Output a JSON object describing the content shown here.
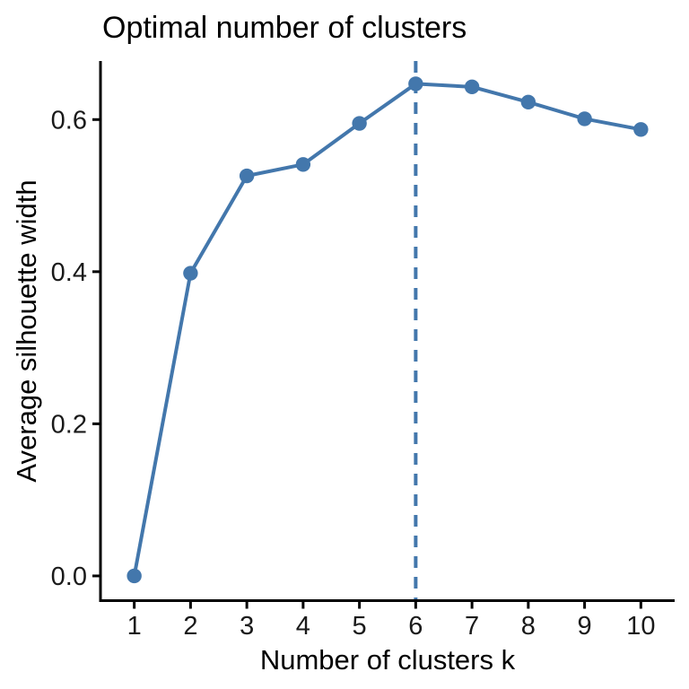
{
  "chart_data": {
    "type": "line",
    "title": "Optimal number of clusters",
    "xlabel": "Number of clusters k",
    "ylabel": "Average silhouette width",
    "x": [
      1,
      2,
      3,
      4,
      5,
      6,
      7,
      8,
      9,
      10
    ],
    "values": [
      0.0,
      0.398,
      0.526,
      0.541,
      0.595,
      0.647,
      0.643,
      0.623,
      0.601,
      0.587
    ],
    "series_name": "Average silhouette width",
    "x_tick_labels": [
      "1",
      "2",
      "3",
      "4",
      "5",
      "6",
      "7",
      "8",
      "9",
      "10"
    ],
    "y_ticks": [
      {
        "value": 0.0,
        "label": "0.0"
      },
      {
        "value": 0.2,
        "label": "0.2"
      },
      {
        "value": 0.4,
        "label": "0.4"
      },
      {
        "value": 0.6,
        "label": "0.6"
      }
    ],
    "xlim": [
      0.4,
      10.6
    ],
    "ylim": [
      -0.0325,
      0.677
    ],
    "grid": false,
    "legend_position": "none",
    "optimal_k": 6,
    "vline": {
      "x": 6,
      "style": "dashed"
    },
    "marker": "circle"
  },
  "colors": {
    "accent": "#4377AC",
    "axis": "#000000",
    "tick_text": "#1a1a1a",
    "background": "#ffffff"
  }
}
